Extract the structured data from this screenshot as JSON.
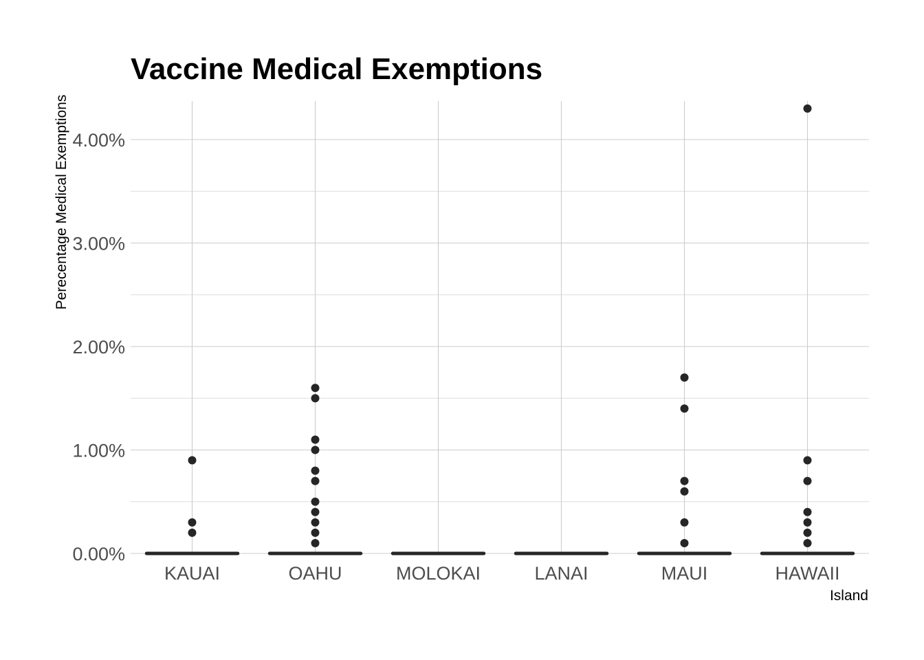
{
  "chart_data": {
    "type": "scatter",
    "title": "Vaccine Medical Exemptions",
    "xlabel": "Island",
    "ylabel": "Perecentage Medical Exemptions",
    "categories": [
      "KAUAI",
      "OAHU",
      "MOLOKAI",
      "LANAI",
      "MAUI",
      "HAWAII"
    ],
    "y_ticks": [
      0,
      1,
      2,
      3,
      4
    ],
    "y_tick_labels": [
      "0.00%",
      "1.00%",
      "2.00%",
      "3.00%",
      "4.00%"
    ],
    "ylim": [
      0,
      4.3
    ],
    "grid": true,
    "legend": "none",
    "zero_baseline_marks": true,
    "series": [
      {
        "values": [
          {
            "x": "KAUAI",
            "y": [
              0.9,
              0.3,
              0.2
            ]
          },
          {
            "x": "OAHU",
            "y": [
              1.6,
              1.5,
              1.1,
              1.0,
              0.8,
              0.7,
              0.5,
              0.4,
              0.3,
              0.2,
              0.1
            ]
          },
          {
            "x": "MOLOKAI",
            "y": []
          },
          {
            "x": "LANAI",
            "y": []
          },
          {
            "x": "MAUI",
            "y": [
              1.7,
              1.4,
              0.7,
              0.6,
              0.3,
              0.1
            ]
          },
          {
            "x": "HAWAII",
            "y": [
              4.3,
              0.9,
              0.7,
              0.4,
              0.3,
              0.2,
              0.1
            ]
          }
        ]
      }
    ],
    "colors": {
      "points": "#262626",
      "grid": "#cccccc",
      "tick_text": "#4d4d4d"
    }
  }
}
